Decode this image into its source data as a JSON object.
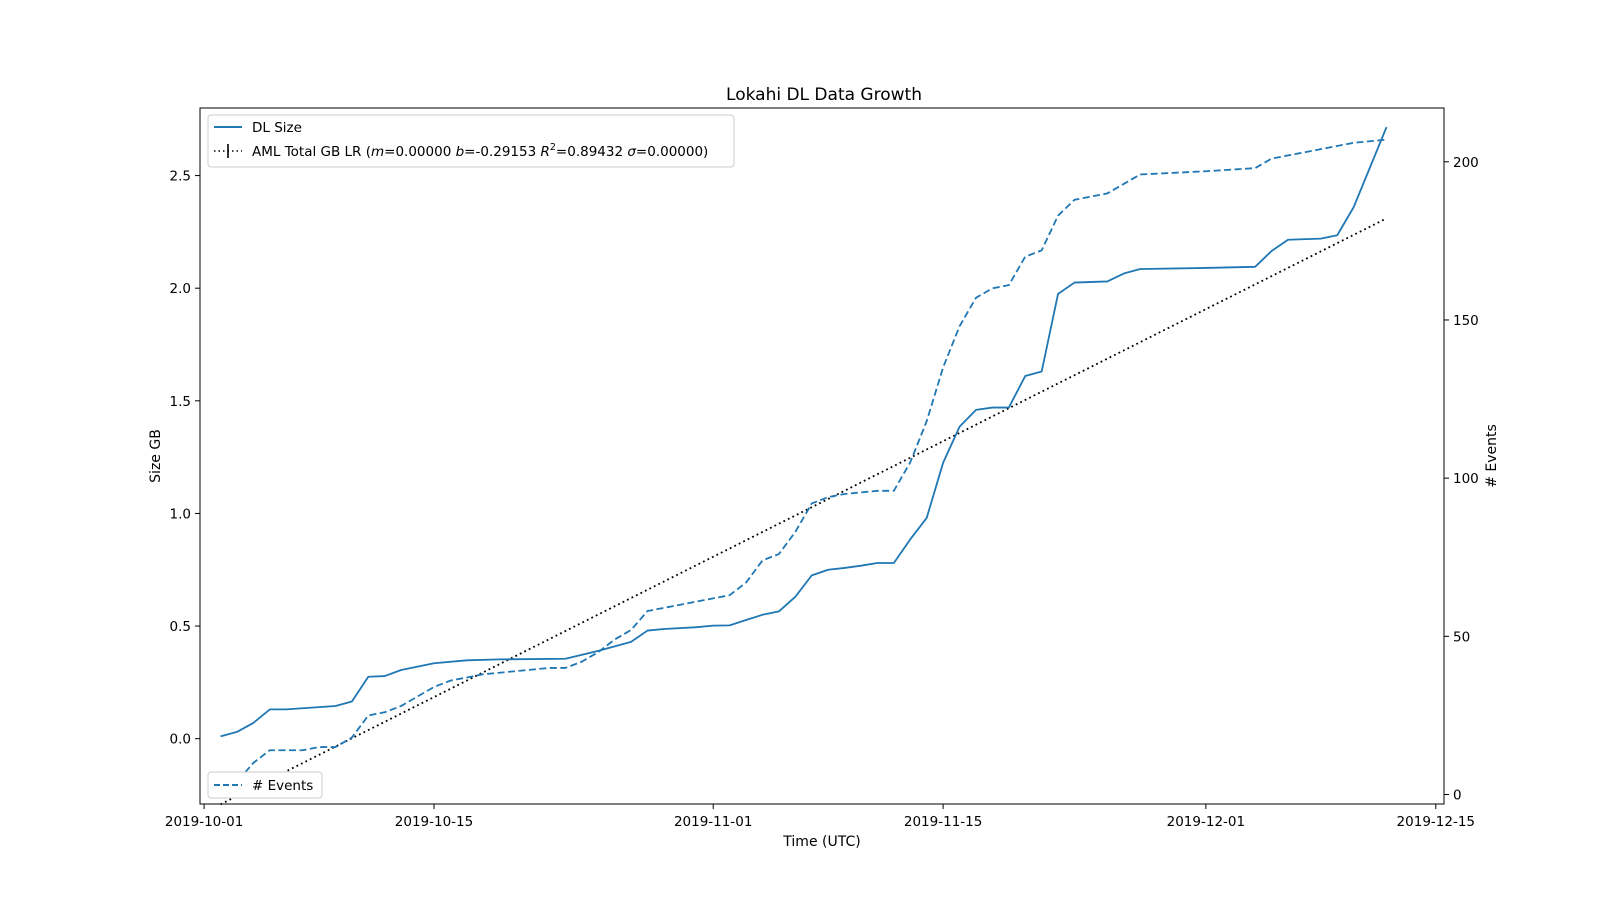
{
  "chart_data": {
    "type": "line",
    "title": "Lokahi DL Data Growth",
    "xlabel": "Time (UTC)",
    "ylabel": "Size GB",
    "y2label": "# Events",
    "x_is_date": true,
    "xlim": [
      "2019-10-01",
      "2019-12-15"
    ],
    "ylim": [
      -0.29,
      2.8
    ],
    "y2lim": [
      -3,
      217
    ],
    "x_ticks": [
      "2019-10-01",
      "2019-10-15",
      "2019-11-01",
      "2019-11-15",
      "2019-12-01",
      "2019-12-15"
    ],
    "y_ticks": [
      0.0,
      0.5,
      1.0,
      1.5,
      2.0,
      2.5
    ],
    "y_tick_labels": [
      "0.0",
      "0.5",
      "1.0",
      "1.5",
      "2.0",
      "2.5"
    ],
    "y2_ticks": [
      0,
      50,
      100,
      150,
      200
    ],
    "y2_tick_labels": [
      "0",
      "50",
      "100",
      "150",
      "200"
    ],
    "grid": false,
    "series": [
      {
        "name": "DL Size",
        "axis": "left",
        "color": "#1f77b4",
        "style": "solid",
        "points": [
          [
            "2019-10-02",
            0.01
          ],
          [
            "2019-10-03",
            0.03
          ],
          [
            "2019-10-04",
            0.07
          ],
          [
            "2019-10-05",
            0.13
          ],
          [
            "2019-10-06",
            0.13
          ],
          [
            "2019-10-07",
            0.135
          ],
          [
            "2019-10-08",
            0.14
          ],
          [
            "2019-10-09",
            0.145
          ],
          [
            "2019-10-10",
            0.165
          ],
          [
            "2019-10-11",
            0.275
          ],
          [
            "2019-10-12",
            0.278
          ],
          [
            "2019-10-13",
            0.305
          ],
          [
            "2019-10-15",
            0.335
          ],
          [
            "2019-10-17",
            0.348
          ],
          [
            "2019-10-19",
            0.352
          ],
          [
            "2019-10-23",
            0.355
          ],
          [
            "2019-10-25",
            0.39
          ],
          [
            "2019-10-27",
            0.43
          ],
          [
            "2019-10-28",
            0.48
          ],
          [
            "2019-10-29",
            0.487
          ],
          [
            "2019-10-31",
            0.495
          ],
          [
            "2019-11-01",
            0.502
          ],
          [
            "2019-11-02",
            0.503
          ],
          [
            "2019-11-03",
            0.527
          ],
          [
            "2019-11-04",
            0.55
          ],
          [
            "2019-11-05",
            0.565
          ],
          [
            "2019-11-06",
            0.63
          ],
          [
            "2019-11-07",
            0.725
          ],
          [
            "2019-11-08",
            0.75
          ],
          [
            "2019-11-09",
            0.758
          ],
          [
            "2019-11-10",
            0.768
          ],
          [
            "2019-11-11",
            0.78
          ],
          [
            "2019-11-12",
            0.78
          ],
          [
            "2019-11-13",
            0.885
          ],
          [
            "2019-11-14",
            0.98
          ],
          [
            "2019-11-15",
            1.225
          ],
          [
            "2019-11-16",
            1.385
          ],
          [
            "2019-11-17",
            1.46
          ],
          [
            "2019-11-18",
            1.47
          ],
          [
            "2019-11-19",
            1.47
          ],
          [
            "2019-11-20",
            1.61
          ],
          [
            "2019-11-21",
            1.63
          ],
          [
            "2019-11-22",
            1.975
          ],
          [
            "2019-11-23",
            2.025
          ],
          [
            "2019-11-25",
            2.03
          ],
          [
            "2019-11-26",
            2.065
          ],
          [
            "2019-11-27",
            2.085
          ],
          [
            "2019-12-01",
            2.09
          ],
          [
            "2019-12-04",
            2.095
          ],
          [
            "2019-12-05",
            2.165
          ],
          [
            "2019-12-06",
            2.215
          ],
          [
            "2019-12-08",
            2.22
          ],
          [
            "2019-12-09",
            2.235
          ],
          [
            "2019-12-10",
            2.36
          ],
          [
            "2019-12-12",
            2.715
          ]
        ]
      },
      {
        "name": "# Events",
        "axis": "right",
        "color": "#1f77b4",
        "style": "dashed",
        "points": [
          [
            "2019-10-02",
            1
          ],
          [
            "2019-10-03",
            4
          ],
          [
            "2019-10-04",
            10
          ],
          [
            "2019-10-05",
            14
          ],
          [
            "2019-10-07",
            14
          ],
          [
            "2019-10-08",
            15
          ],
          [
            "2019-10-09",
            15
          ],
          [
            "2019-10-10",
            18
          ],
          [
            "2019-10-11",
            25
          ],
          [
            "2019-10-12",
            26
          ],
          [
            "2019-10-13",
            28
          ],
          [
            "2019-10-14",
            31
          ],
          [
            "2019-10-15",
            34
          ],
          [
            "2019-10-16",
            36
          ],
          [
            "2019-10-17",
            37
          ],
          [
            "2019-10-18",
            38
          ],
          [
            "2019-10-19",
            38.5
          ],
          [
            "2019-10-20",
            39
          ],
          [
            "2019-10-22",
            40
          ],
          [
            "2019-10-23",
            40
          ],
          [
            "2019-10-24",
            42
          ],
          [
            "2019-10-25",
            45
          ],
          [
            "2019-10-26",
            49
          ],
          [
            "2019-10-27",
            52
          ],
          [
            "2019-10-28",
            58
          ],
          [
            "2019-10-29",
            59
          ],
          [
            "2019-10-31",
            61
          ],
          [
            "2019-11-02",
            63
          ],
          [
            "2019-11-03",
            67
          ],
          [
            "2019-11-04",
            74
          ],
          [
            "2019-11-05",
            76
          ],
          [
            "2019-11-06",
            83
          ],
          [
            "2019-11-07",
            92
          ],
          [
            "2019-11-08",
            94
          ],
          [
            "2019-11-09",
            95
          ],
          [
            "2019-11-10",
            95.5
          ],
          [
            "2019-11-11",
            96
          ],
          [
            "2019-11-12",
            96
          ],
          [
            "2019-11-13",
            105
          ],
          [
            "2019-11-14",
            118
          ],
          [
            "2019-11-15",
            135
          ],
          [
            "2019-11-16",
            148
          ],
          [
            "2019-11-17",
            157
          ],
          [
            "2019-11-18",
            160
          ],
          [
            "2019-11-19",
            161
          ],
          [
            "2019-11-20",
            170
          ],
          [
            "2019-11-21",
            172
          ],
          [
            "2019-11-22",
            183
          ],
          [
            "2019-11-23",
            188
          ],
          [
            "2019-11-25",
            190
          ],
          [
            "2019-11-26",
            193
          ],
          [
            "2019-11-27",
            196
          ],
          [
            "2019-12-01",
            197
          ],
          [
            "2019-12-04",
            198
          ],
          [
            "2019-12-05",
            201
          ],
          [
            "2019-12-07",
            203
          ],
          [
            "2019-12-10",
            206
          ],
          [
            "2019-12-12",
            207
          ]
        ]
      },
      {
        "name": "AML Total GB LR",
        "axis": "left",
        "color": "#000000",
        "style": "dotted",
        "points": [
          [
            "2019-10-02",
            -0.29153
          ],
          [
            "2019-12-12",
            2.31
          ]
        ]
      }
    ],
    "legend_left_top": {
      "placement": "top-left",
      "entries": [
        {
          "label": "DL Size",
          "style": "solid",
          "color": "#1f77b4"
        },
        {
          "label": "AML Total GB LR (m=0.00000 b=-0.29153 R²=0.89432 σ=0.00000)",
          "style": "dotted",
          "color": "#000000"
        }
      ]
    },
    "legend_right_bottom": {
      "placement": "bottom-left",
      "entries": [
        {
          "label": "# Events",
          "style": "dashed",
          "color": "#1f77b4"
        }
      ]
    }
  }
}
